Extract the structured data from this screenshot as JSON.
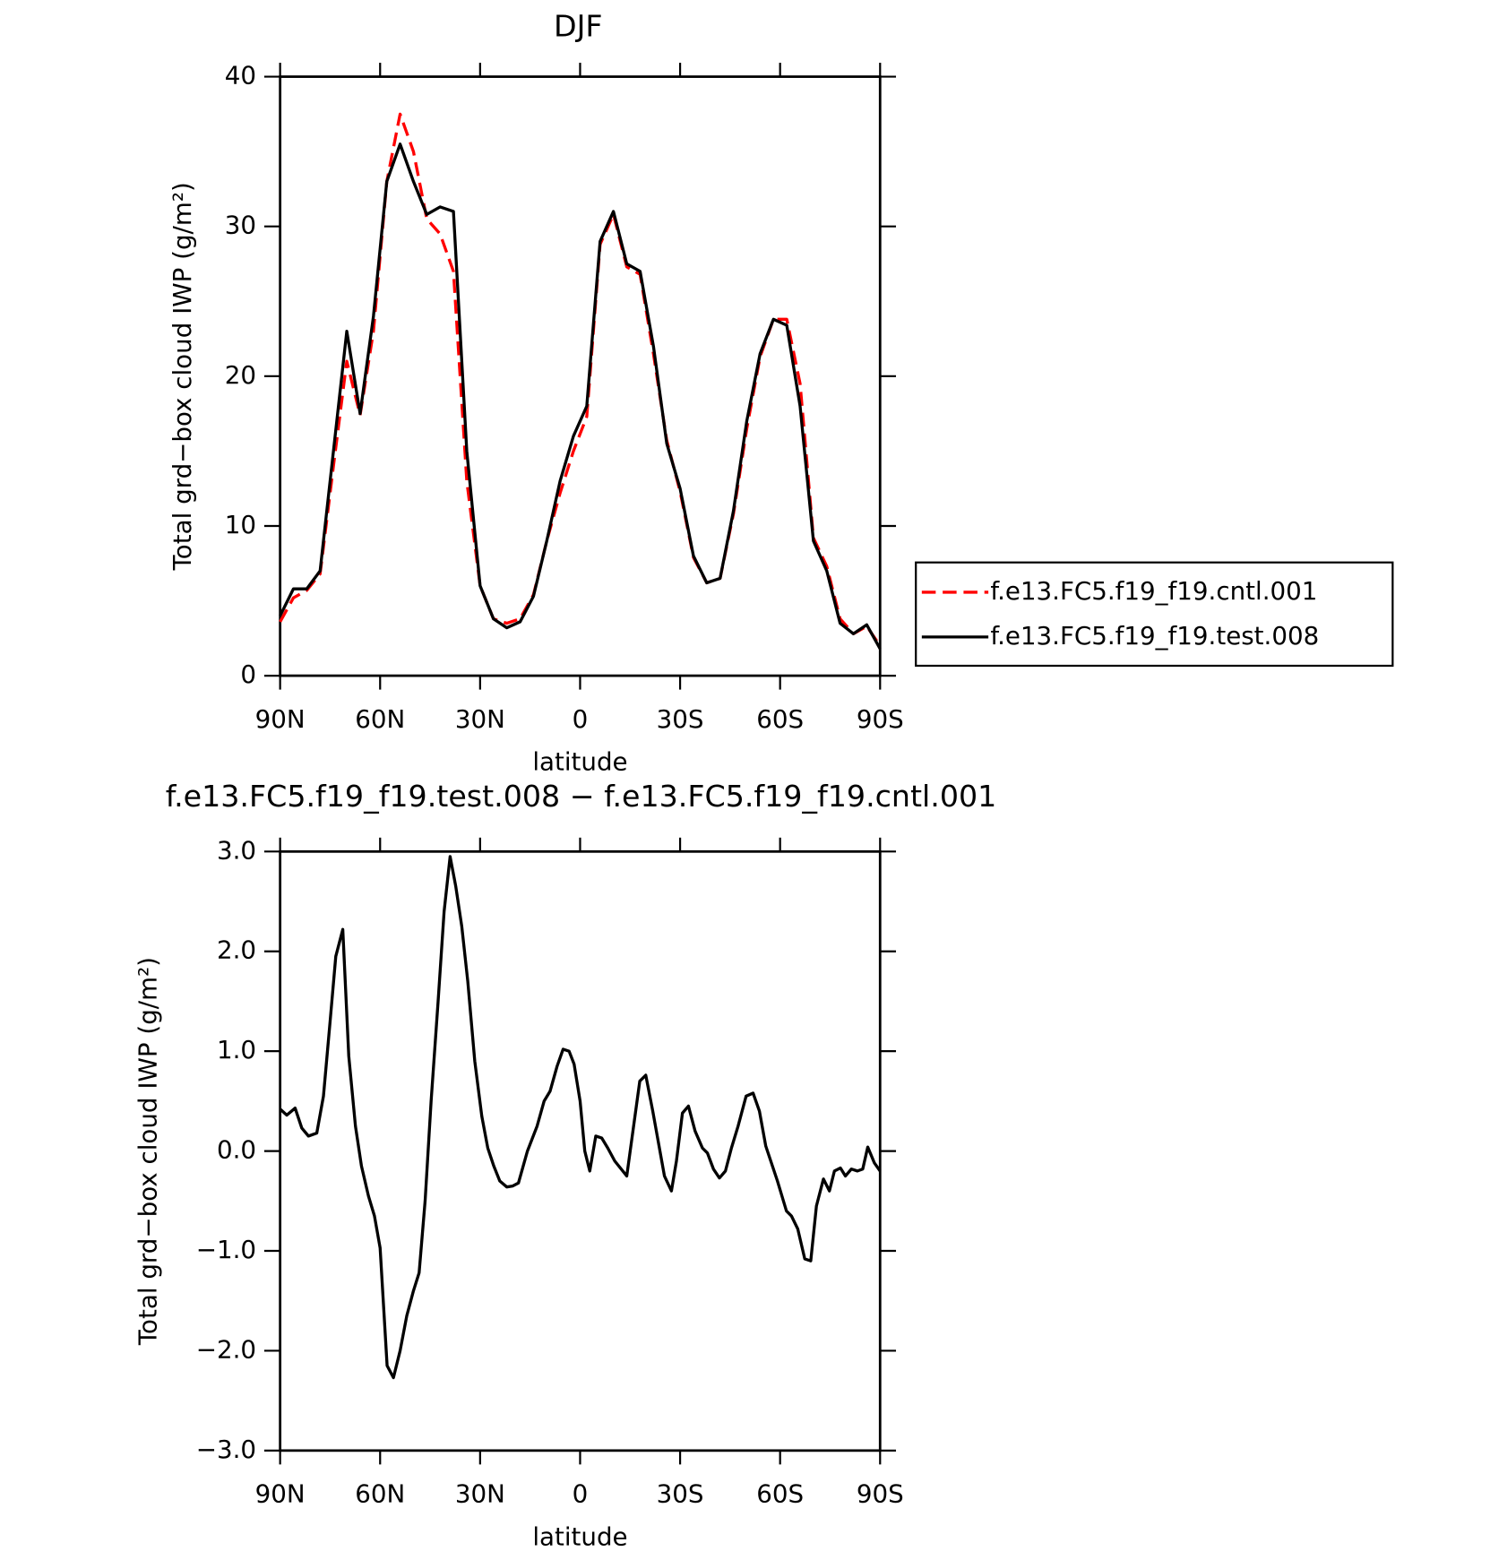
{
  "chart_data": [
    {
      "type": "line",
      "title": "DJF",
      "xlabel": "latitude",
      "ylabel": "Total grd−box cloud IWP (g/m²)",
      "x": [
        90,
        86,
        82,
        78,
        74,
        70,
        66,
        62,
        58,
        54,
        50,
        46,
        42,
        38,
        34,
        30,
        26,
        22,
        18,
        14,
        10,
        6,
        2,
        -2,
        -6,
        -10,
        -14,
        -18,
        -22,
        -26,
        -30,
        -34,
        -38,
        -42,
        -46,
        -50,
        -54,
        -58,
        -62,
        -66,
        -70,
        -74,
        -78,
        -82,
        -86,
        -90
      ],
      "series": [
        {
          "name": "f.e13.FC5.f19_f19.cntl.001",
          "color": "#ff0000",
          "dashed": true,
          "values": [
            3.6,
            5.2,
            5.7,
            6.8,
            14,
            21,
            17.4,
            23,
            33,
            37.5,
            35,
            30.5,
            29.5,
            27,
            13,
            6,
            3.8,
            3.5,
            3.8,
            5.4,
            9,
            12.2,
            15,
            17.3,
            28.8,
            30.8,
            27.3,
            26.8,
            21.5,
            15.7,
            12.3,
            7.9,
            6.2,
            6.5,
            10.8,
            16.5,
            21.3,
            23.8,
            23.8,
            19.5,
            9.2,
            7.3,
            3.8,
            2.8,
            3.3,
            2
          ]
        },
        {
          "name": "f.e13.FC5.f19_f19.test.008",
          "color": "#000000",
          "dashed": false,
          "values": [
            4,
            5.8,
            5.8,
            7,
            15,
            23,
            17.5,
            24,
            33,
            35.5,
            33,
            30.8,
            31.3,
            31,
            15,
            6,
            3.8,
            3.2,
            3.6,
            5.3,
            9,
            13,
            16,
            18,
            29,
            31,
            27.5,
            27,
            22,
            15.5,
            12.5,
            8,
            6.2,
            6.5,
            11,
            17,
            21.5,
            23.8,
            23.4,
            18,
            9,
            7,
            3.5,
            2.8,
            3.4,
            1.8
          ]
        }
      ],
      "xlim": [
        90,
        -90
      ],
      "xticks": [
        {
          "value": 90,
          "label": "90N"
        },
        {
          "value": 60,
          "label": "60N"
        },
        {
          "value": 30,
          "label": "30N"
        },
        0,
        {
          "value": -30,
          "label": "30S"
        },
        {
          "value": -60,
          "label": "60S"
        },
        {
          "value": -90,
          "label": "90S"
        }
      ],
      "ylim": [
        0,
        40
      ],
      "yticks": [
        0,
        10,
        20,
        30,
        40
      ],
      "legend": "right"
    },
    {
      "type": "line",
      "title": "f.e13.FC5.f19_f19.test.008 − f.e13.FC5.f19_f19.cntl.001",
      "xlabel": "latitude",
      "ylabel": "Total grd−box cloud IWP (g/m²)",
      "x": [
        90,
        88,
        85.5,
        83.5,
        81.5,
        79,
        77,
        75,
        73.3,
        71.2,
        69.4,
        67.4,
        65.6,
        63.5,
        61.7,
        60,
        57.9,
        56,
        54,
        52,
        50,
        48.3,
        46.5,
        44.7,
        42.6,
        40.8,
        39,
        37.3,
        35.5,
        33.7,
        31.6,
        29.5,
        27.7,
        25.9,
        24.1,
        22,
        20.2,
        18.5,
        15.8,
        12.9,
        10.8,
        9,
        6.9,
        5.1,
        3.3,
        1.8,
        0,
        -1.4,
        -2.9,
        -4.7,
        -6.5,
        -8.3,
        -10.4,
        -14,
        -17.9,
        -19.7,
        -21.8,
        -25.3,
        -27.4,
        -28.9,
        -30.7,
        -32.5,
        -34.5,
        -36.7,
        -38.2,
        -40,
        -41.8,
        -43.6,
        -45.4,
        -47.4,
        -49.8,
        -51.9,
        -53.8,
        -55.7,
        -59.2,
        -61.9,
        -63.4,
        -65.3,
        -67.4,
        -69.2,
        -70.9,
        -73,
        -74.8,
        -76.3,
        -78.1,
        -79.6,
        -81.4,
        -83.2,
        -84.8,
        -86.3,
        -88.3,
        -90
      ],
      "values": [
        0.42,
        0.36,
        0.43,
        0.23,
        0.15,
        0.18,
        0.55,
        1.3,
        1.95,
        2.22,
        0.95,
        0.25,
        -0.15,
        -0.45,
        -0.65,
        -0.97,
        -2.15,
        -2.27,
        -2.0,
        -1.65,
        -1.4,
        -1.22,
        -0.5,
        0.5,
        1.5,
        2.4,
        2.95,
        2.65,
        2.25,
        1.7,
        0.9,
        0.35,
        0.03,
        -0.15,
        -0.3,
        -0.36,
        -0.35,
        -0.32,
        0.0,
        0.25,
        0.5,
        0.6,
        0.85,
        1.02,
        1.0,
        0.87,
        0.5,
        0.0,
        -0.2,
        0.15,
        0.13,
        0.03,
        -0.1,
        -0.25,
        0.7,
        0.76,
        0.4,
        -0.25,
        -0.4,
        -0.1,
        0.38,
        0.45,
        0.2,
        0.03,
        -0.02,
        -0.18,
        -0.27,
        -0.2,
        0.03,
        0.25,
        0.55,
        0.58,
        0.4,
        0.05,
        -0.3,
        -0.6,
        -0.65,
        -0.78,
        -1.08,
        -1.1,
        -0.55,
        -0.28,
        -0.4,
        -0.2,
        -0.17,
        -0.25,
        -0.18,
        -0.2,
        -0.18,
        0.04,
        -0.12,
        -0.2
      ],
      "color": "#000000",
      "xlim": [
        90,
        -90
      ],
      "xticks": [
        {
          "value": 90,
          "label": "90N"
        },
        {
          "value": 60,
          "label": "60N"
        },
        {
          "value": 30,
          "label": "30N"
        },
        0,
        {
          "value": -30,
          "label": "30S"
        },
        {
          "value": -60,
          "label": "60S"
        },
        {
          "value": -90,
          "label": "90S"
        }
      ],
      "ylim": [
        -3,
        3
      ],
      "yticks": [
        {
          "value": -3,
          "label": "−3.0"
        },
        {
          "value": -2,
          "label": "−2.0"
        },
        {
          "value": -1,
          "label": "−1.0"
        },
        {
          "value": 0,
          "label": "0.0"
        },
        {
          "value": 1,
          "label": "1.0"
        },
        {
          "value": 2,
          "label": "2.0"
        },
        {
          "value": 3,
          "label": "3.0"
        }
      ]
    }
  ]
}
